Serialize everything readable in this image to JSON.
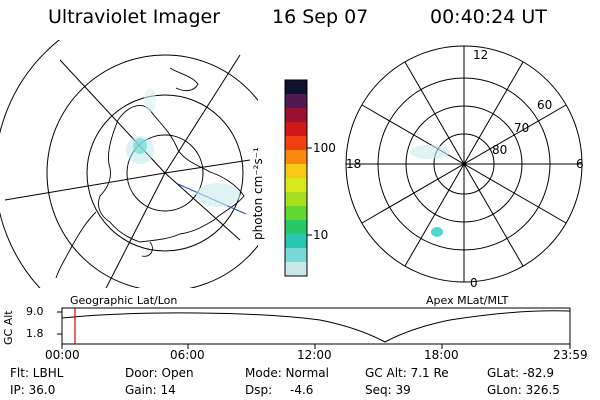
{
  "header": {
    "title": "Ultraviolet Imager",
    "date": "16 Sep 07",
    "time": "00:40:24 UT"
  },
  "colorbar": {
    "unit_label": "photon cm⁻²s⁻¹",
    "ticks": [
      "100",
      "10"
    ],
    "colors": [
      "#101030",
      "#501850",
      "#9a1030",
      "#d01818",
      "#f04010",
      "#f88810",
      "#f8c818",
      "#d8e818",
      "#a8e020",
      "#60d830",
      "#28c868",
      "#28c8b0",
      "#78d8d8",
      "#c8e8e8"
    ]
  },
  "left_map": {
    "label": "Geographic Lat/Lon"
  },
  "right_map": {
    "label": "Apex MLat/MLT",
    "lat_labels": [
      "60",
      "70",
      "80"
    ],
    "mlt_labels": {
      "top": "12",
      "right": "6",
      "bottom": "0",
      "left": "18"
    }
  },
  "timeline": {
    "axis_label": "GC Alt",
    "y_ticks": [
      "9.0",
      "1.8"
    ],
    "x_ticks": [
      "00:00",
      "06:00",
      "12:00",
      "18:00",
      "23:59"
    ],
    "marker_color": "#e00000"
  },
  "status": {
    "filter": "Flt: LBHL",
    "ip": "IP: 36.0",
    "door": "Door: Open",
    "gain": "Gain: 14",
    "mode": "Mode: Normal",
    "dsp_label": "Dsp:",
    "dsp_value": "-4.6",
    "gc_alt": "GC Alt: 7.1 Re",
    "seq": "Seq: 39",
    "glat": "GLat: -82.9",
    "glon": "GLon: 326.5"
  }
}
